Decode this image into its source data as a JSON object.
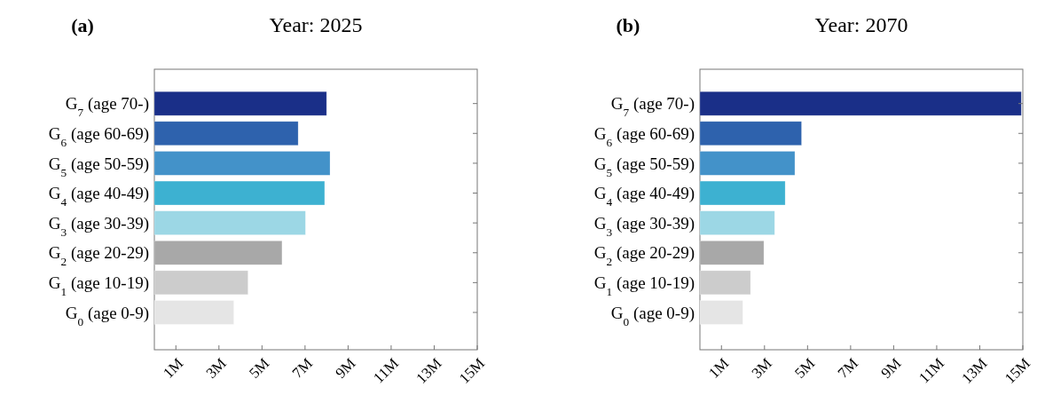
{
  "chart_data": [
    {
      "type": "bar",
      "orientation": "horizontal",
      "title": "Year: 2025",
      "annotations": [
        "(a)"
      ],
      "categories": [
        "G$_{7}$ (age 70-)",
        "G$_{6}$ (age 60-69)",
        "G$_{5}$ (age 50-59)",
        "G$_{4}$ (age 40-49)",
        "G$_{3}$ (age 30-39)",
        "G$_{2}$ (age 20-29)",
        "G$_{1}$ (age 10-19)",
        "G$_{0}$ (age 0-9)"
      ],
      "values": [
        8.0,
        6.68,
        8.16,
        7.91,
        7.02,
        5.93,
        4.35,
        3.69
      ],
      "colors": [
        "#1a2f88",
        "#2e62ad",
        "#4392c9",
        "#3db1d1",
        "#9cd7e5",
        "#a8a8a8",
        "#cccccc",
        "#e5e5e5"
      ],
      "xlim": [
        0,
        15
      ],
      "xticks": [
        {
          "value": 1,
          "label": "1M"
        },
        {
          "value": 3,
          "label": "3M"
        },
        {
          "value": 5,
          "label": "5M"
        },
        {
          "value": 7,
          "label": "7M"
        },
        {
          "value": 9,
          "label": "9M"
        },
        {
          "value": 11,
          "label": "11M"
        },
        {
          "value": 13,
          "label": "13M"
        },
        {
          "value": 15,
          "label": "15M"
        }
      ]
    },
    {
      "type": "bar",
      "orientation": "horizontal",
      "title": "Year: 2070",
      "annotations": [
        "(b)"
      ],
      "categories": [
        "G$_{7}$ (age 70-)",
        "G$_{6}$ (age 60-69)",
        "G$_{5}$ (age 50-59)",
        "G$_{4}$ (age 40-49)",
        "G$_{3}$ (age 30-39)",
        "G$_{2}$ (age 20-29)",
        "G$_{1}$ (age 10-19)",
        "G$_{0}$ (age 0-9)"
      ],
      "values": [
        14.93,
        4.72,
        4.41,
        3.96,
        3.47,
        2.97,
        2.35,
        1.99
      ],
      "colors": [
        "#1a2f88",
        "#2e62ad",
        "#4392c9",
        "#3db1d1",
        "#9cd7e5",
        "#a8a8a8",
        "#cccccc",
        "#e5e5e5"
      ],
      "xlim": [
        0,
        15
      ],
      "xticks": [
        {
          "value": 1,
          "label": "1M"
        },
        {
          "value": 3,
          "label": "3M"
        },
        {
          "value": 5,
          "label": "5M"
        },
        {
          "value": 7,
          "label": "7M"
        },
        {
          "value": 9,
          "label": "9M"
        },
        {
          "value": 11,
          "label": "11M"
        },
        {
          "value": 13,
          "label": "13M"
        },
        {
          "value": 15,
          "label": "15M"
        }
      ]
    }
  ]
}
